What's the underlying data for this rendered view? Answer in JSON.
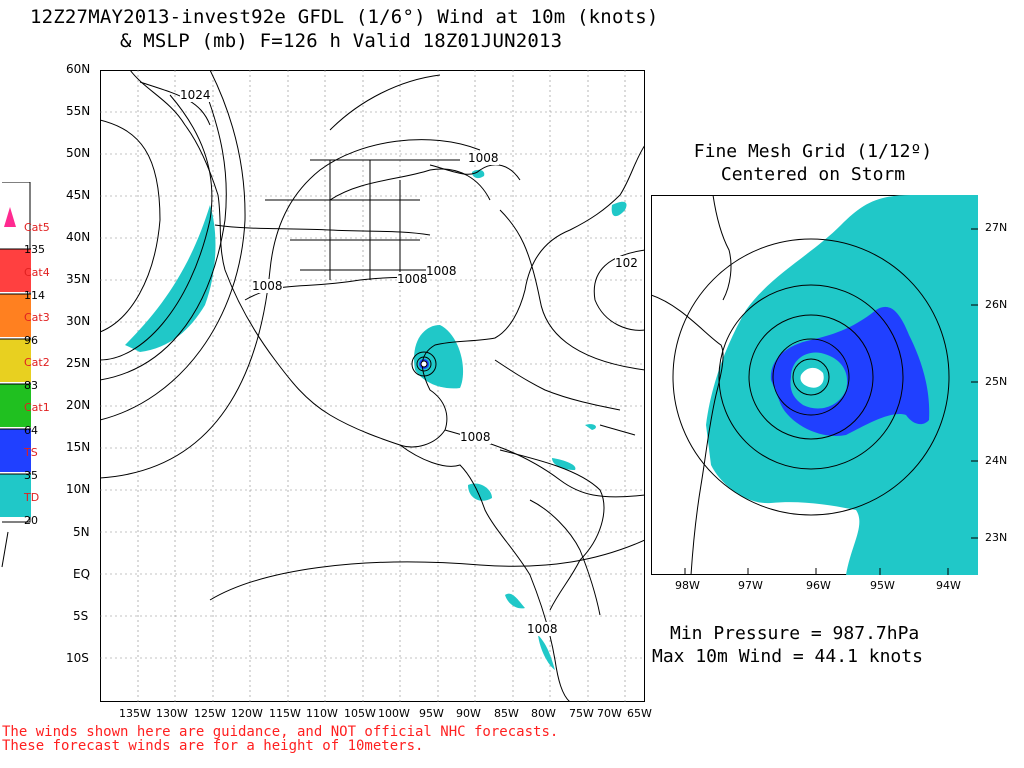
{
  "title_line1": "12Z27MAY2013-invest92e GFDL (1/6°) Wind at 10m (knots)",
  "title_line2": "& MSLP (mb) F=126 h Valid 18Z01JUN2013",
  "main_map": {
    "lat_labels": [
      "60N",
      "55N",
      "50N",
      "45N",
      "40N",
      "35N",
      "30N",
      "25N",
      "20N",
      "15N",
      "10N",
      "5N",
      "EQ",
      "5S",
      "10S"
    ],
    "lon_labels": [
      "135W",
      "130W",
      "125W",
      "120W",
      "115W",
      "110W",
      "105W",
      "100W",
      "95W",
      "90W",
      "85W",
      "80W",
      "75W",
      "70W",
      "65W"
    ],
    "isobar_labels": [
      "1024",
      "1008",
      "1008",
      "1008",
      "1008",
      "1008",
      "102"
    ]
  },
  "legend": {
    "categories": [
      "Cat5",
      "Cat4",
      "Cat3",
      "Cat2",
      "Cat1",
      "TS",
      "TD"
    ],
    "thresholds": [
      "135",
      "114",
      "96",
      "83",
      "64",
      "35",
      "20"
    ],
    "colors": [
      "#ff2a90",
      "#ff4040",
      "#ff8020",
      "#e8d020",
      "#20c020",
      "#2040ff",
      "#20c8c8"
    ]
  },
  "fine_mesh": {
    "title_line1": "Fine Mesh Grid (1/12º)",
    "title_line2": "Centered on Storm",
    "lat_labels": [
      "27N",
      "26N",
      "25N",
      "24N",
      "23N"
    ],
    "lon_labels": [
      "98W",
      "97W",
      "96W",
      "95W",
      "94W"
    ]
  },
  "stats": {
    "min_pressure": "Min Pressure = 987.7hPa",
    "max_wind": "Max 10m Wind = 44.1 knots"
  },
  "disclaimer": {
    "line1": "The winds shown here are guidance, and NOT official NHC forecasts.",
    "line2": "These forecast winds are for a height of 10meters."
  },
  "colors": {
    "td_fill": "#20c8c8",
    "ts_fill": "#2040ff"
  }
}
